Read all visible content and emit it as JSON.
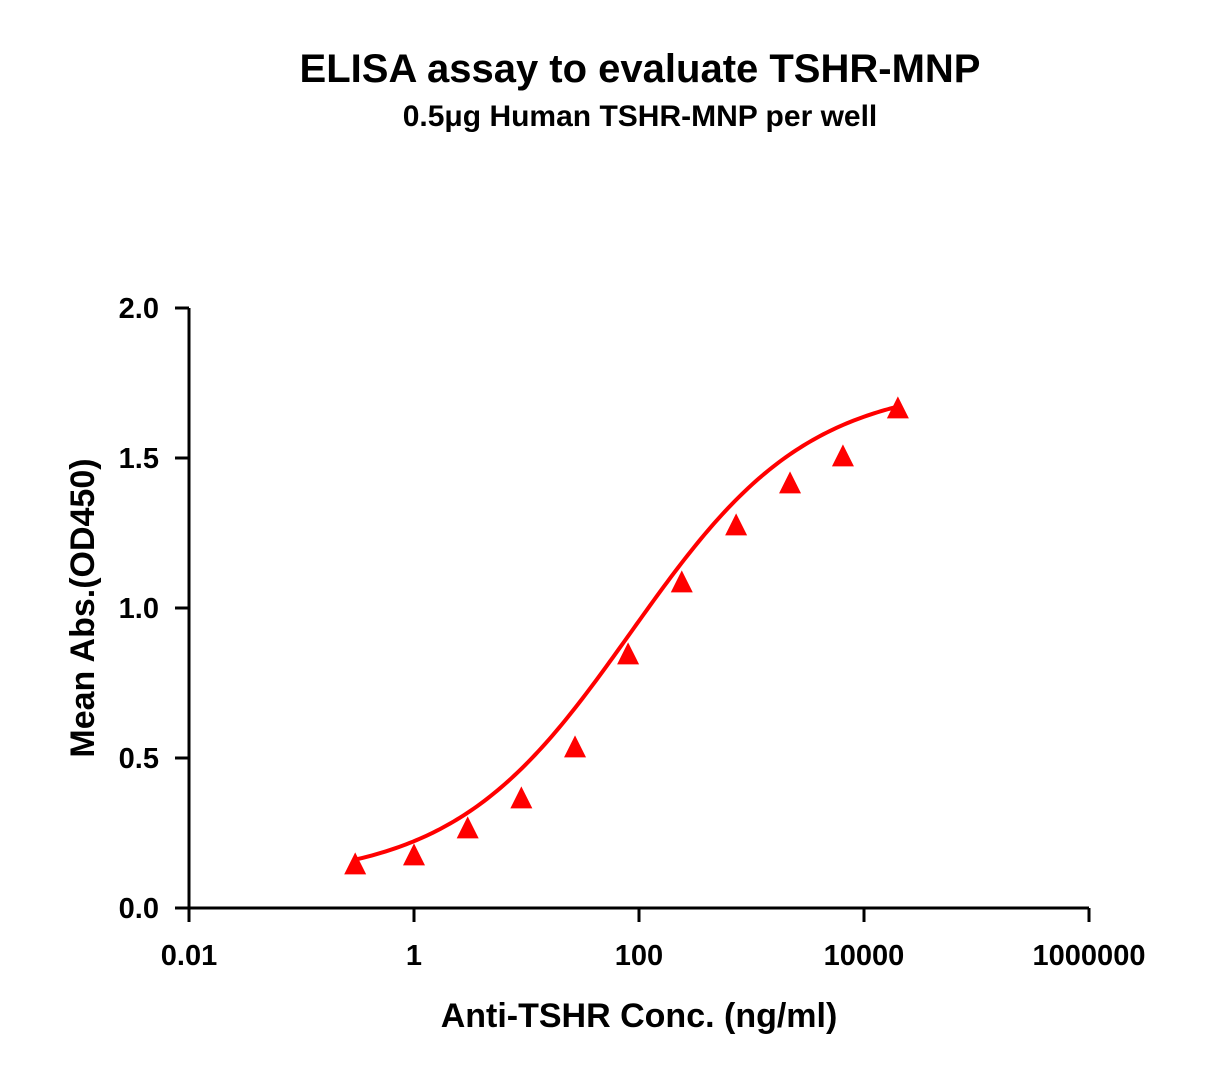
{
  "chart_data": {
    "type": "scatter",
    "title": "ELISA assay to evaluate TSHR-MNP",
    "subtitle": "0.5μg Human TSHR-MNP per well",
    "xlabel": "Anti-TSHR Conc. (ng/ml)",
    "ylabel": "Mean Abs.(OD450)",
    "x_scale": "log",
    "xlim": [
      0.01,
      1000000
    ],
    "ylim": [
      0,
      2
    ],
    "x_ticks": [
      0.01,
      1,
      100,
      10000,
      1000000
    ],
    "x_tick_labels": [
      "0.01",
      "1",
      "100",
      "10000",
      "1000000"
    ],
    "y_ticks": [
      0,
      0.5,
      1,
      1.5,
      2
    ],
    "y_tick_labels": [
      "0.0",
      "0.5",
      "1.0",
      "1.5",
      "2.0"
    ],
    "grid": false,
    "legend": "none",
    "series": [
      {
        "marker": "triangle",
        "color": "#ff0000",
        "points": [
          {
            "x": 0.3,
            "y": 0.14
          },
          {
            "x": 1.0,
            "y": 0.17
          },
          {
            "x": 3.0,
            "y": 0.26
          },
          {
            "x": 9.0,
            "y": 0.36
          },
          {
            "x": 27,
            "y": 0.53
          },
          {
            "x": 80,
            "y": 0.84
          },
          {
            "x": 240,
            "y": 1.08
          },
          {
            "x": 730,
            "y": 1.27
          },
          {
            "x": 2200,
            "y": 1.41
          },
          {
            "x": 6500,
            "y": 1.5
          },
          {
            "x": 20000,
            "y": 1.66
          }
        ]
      }
    ],
    "fit_curve": {
      "model": "4PL",
      "color": "#ff0000",
      "bottom": 0.09,
      "top": 1.75,
      "ec50": 85,
      "hill": 0.55,
      "x_range": [
        0.3,
        20000
      ]
    }
  }
}
